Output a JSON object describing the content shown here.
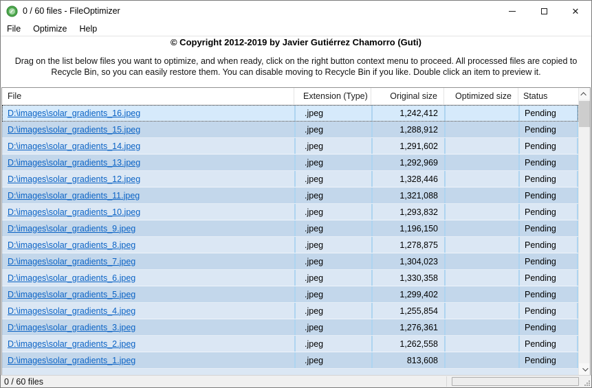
{
  "window": {
    "title": "0 / 60 files - FileOptimizer"
  },
  "menu": {
    "items": [
      "File",
      "Optimize",
      "Help"
    ]
  },
  "copyright": "© Copyright 2012-2019 by Javier Gutiérrez Chamorro (Guti)",
  "instructions": "Drag on the list below files you want to optimize, and when ready, click on the right button context menu to proceed. All processed files are copied to Recycle Bin, so you can easily restore them. You can disable moving to Recycle Bin if you like. Double click an item to preview it.",
  "table": {
    "columns": [
      "File",
      "Extension (Type)",
      "Original size",
      "Optimized size",
      "Status"
    ],
    "rows": [
      {
        "file": "D:\\images\\solar_gradients_16.jpeg",
        "ext": ".jpeg",
        "original": "1,242,412",
        "optimized": "",
        "status": "Pending",
        "selected": true
      },
      {
        "file": "D:\\images\\solar_gradients_15.jpeg",
        "ext": ".jpeg",
        "original": "1,288,912",
        "optimized": "",
        "status": "Pending",
        "selected": false
      },
      {
        "file": "D:\\images\\solar_gradients_14.jpeg",
        "ext": ".jpeg",
        "original": "1,291,602",
        "optimized": "",
        "status": "Pending",
        "selected": false
      },
      {
        "file": "D:\\images\\solar_gradients_13.jpeg",
        "ext": ".jpeg",
        "original": "1,292,969",
        "optimized": "",
        "status": "Pending",
        "selected": false
      },
      {
        "file": "D:\\images\\solar_gradients_12.jpeg",
        "ext": ".jpeg",
        "original": "1,328,446",
        "optimized": "",
        "status": "Pending",
        "selected": false
      },
      {
        "file": "D:\\images\\solar_gradients_11.jpeg",
        "ext": ".jpeg",
        "original": "1,321,088",
        "optimized": "",
        "status": "Pending",
        "selected": false
      },
      {
        "file": "D:\\images\\solar_gradients_10.jpeg",
        "ext": ".jpeg",
        "original": "1,293,832",
        "optimized": "",
        "status": "Pending",
        "selected": false
      },
      {
        "file": "D:\\images\\solar_gradients_9.jpeg",
        "ext": ".jpeg",
        "original": "1,196,150",
        "optimized": "",
        "status": "Pending",
        "selected": false
      },
      {
        "file": "D:\\images\\solar_gradients_8.jpeg",
        "ext": ".jpeg",
        "original": "1,278,875",
        "optimized": "",
        "status": "Pending",
        "selected": false
      },
      {
        "file": "D:\\images\\solar_gradients_7.jpeg",
        "ext": ".jpeg",
        "original": "1,304,023",
        "optimized": "",
        "status": "Pending",
        "selected": false
      },
      {
        "file": "D:\\images\\solar_gradients_6.jpeg",
        "ext": ".jpeg",
        "original": "1,330,358",
        "optimized": "",
        "status": "Pending",
        "selected": false
      },
      {
        "file": "D:\\images\\solar_gradients_5.jpeg",
        "ext": ".jpeg",
        "original": "1,299,402",
        "optimized": "",
        "status": "Pending",
        "selected": false
      },
      {
        "file": "D:\\images\\solar_gradients_4.jpeg",
        "ext": ".jpeg",
        "original": "1,255,854",
        "optimized": "",
        "status": "Pending",
        "selected": false
      },
      {
        "file": "D:\\images\\solar_gradients_3.jpeg",
        "ext": ".jpeg",
        "original": "1,276,361",
        "optimized": "",
        "status": "Pending",
        "selected": false
      },
      {
        "file": "D:\\images\\solar_gradients_2.jpeg",
        "ext": ".jpeg",
        "original": "1,262,558",
        "optimized": "",
        "status": "Pending",
        "selected": false
      },
      {
        "file": "D:\\images\\solar_gradients_1.jpeg",
        "ext": ".jpeg",
        "original": "813,608",
        "optimized": "",
        "status": "Pending",
        "selected": false
      }
    ]
  },
  "statusbar": {
    "text": "0 / 60 files",
    "progress_percent": 0
  },
  "colors": {
    "link": "#0b63c5",
    "row_light": "#dbe7f4",
    "row_dark": "#c3d7eb",
    "row_selected": "#d6eafb",
    "column_separator": "#aed4f0",
    "app_icon_green": "#4ca64c",
    "statusbar_bg": "#f0f0f0"
  }
}
